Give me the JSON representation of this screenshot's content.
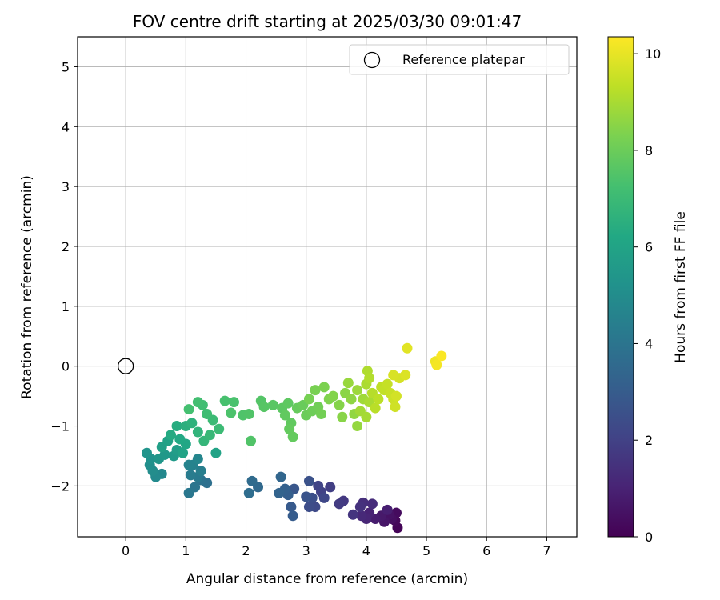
{
  "chart_data": {
    "type": "scatter",
    "title": "FOV centre drift starting at 2025/03/30 09:01:47",
    "xlabel": "Angular distance from reference (arcmin)",
    "ylabel": "Rotation from reference (arcmin)",
    "xlim": [
      -0.8,
      7.5
    ],
    "ylim": [
      -2.85,
      5.5
    ],
    "xticks": [
      0,
      1,
      2,
      3,
      4,
      5,
      6,
      7
    ],
    "yticks": [
      -2,
      -1,
      0,
      1,
      2,
      3,
      4,
      5
    ],
    "grid": true,
    "legend": {
      "placement": "top-right",
      "entries": [
        {
          "label": "Reference platepar",
          "marker": "open-circle"
        }
      ]
    },
    "reference_point": {
      "x": 0,
      "y": 0
    },
    "colorbar": {
      "label": "Hours from first FF file",
      "colormap": "viridis",
      "range": [
        0,
        10.35
      ],
      "ticks": [
        0,
        2,
        4,
        6,
        8,
        10
      ]
    },
    "points": [
      [
        4.52,
        -2.7,
        0.1
      ],
      [
        4.48,
        -2.58,
        0.2
      ],
      [
        4.5,
        -2.45,
        0.3
      ],
      [
        4.42,
        -2.55,
        0.4
      ],
      [
        4.38,
        -2.48,
        0.5
      ],
      [
        4.3,
        -2.6,
        0.6
      ],
      [
        4.25,
        -2.5,
        0.7
      ],
      [
        4.15,
        -2.55,
        0.8
      ],
      [
        4.35,
        -2.4,
        0.9
      ],
      [
        4.05,
        -2.45,
        1.0
      ],
      [
        4.0,
        -2.55,
        1.1
      ],
      [
        3.92,
        -2.5,
        1.2
      ],
      [
        4.1,
        -2.3,
        1.3
      ],
      [
        3.95,
        -2.28,
        1.4
      ],
      [
        3.9,
        -2.35,
        1.5
      ],
      [
        3.78,
        -2.48,
        1.6
      ],
      [
        3.62,
        -2.25,
        1.7
      ],
      [
        3.55,
        -2.3,
        1.8
      ],
      [
        3.4,
        -2.02,
        1.9
      ],
      [
        3.25,
        -2.1,
        2.0
      ],
      [
        3.2,
        -2.0,
        2.1
      ],
      [
        3.3,
        -2.2,
        2.2
      ],
      [
        3.15,
        -2.35,
        2.3
      ],
      [
        3.05,
        -2.35,
        2.4
      ],
      [
        3.1,
        -2.2,
        2.5
      ],
      [
        3.05,
        -1.92,
        2.6
      ],
      [
        3.0,
        -2.18,
        2.7
      ],
      [
        2.8,
        -2.05,
        2.8
      ],
      [
        2.75,
        -2.35,
        2.9
      ],
      [
        2.78,
        -2.5,
        3.0
      ],
      [
        2.7,
        -2.15,
        3.1
      ],
      [
        2.65,
        -2.05,
        3.2
      ],
      [
        2.55,
        -2.12,
        3.3
      ],
      [
        2.58,
        -1.85,
        3.4
      ],
      [
        2.2,
        -2.02,
        3.5
      ],
      [
        2.1,
        -1.92,
        3.6
      ],
      [
        2.05,
        -2.12,
        3.7
      ],
      [
        1.35,
        -1.95,
        3.8
      ],
      [
        1.25,
        -1.9,
        3.9
      ],
      [
        1.15,
        -2.02,
        4.0
      ],
      [
        1.05,
        -2.12,
        4.1
      ],
      [
        1.2,
        -1.85,
        4.2
      ],
      [
        1.08,
        -1.82,
        4.3
      ],
      [
        1.25,
        -1.75,
        4.4
      ],
      [
        1.12,
        -1.65,
        4.5
      ],
      [
        1.05,
        -1.65,
        4.6
      ],
      [
        1.2,
        -1.55,
        4.7
      ],
      [
        0.6,
        -1.8,
        4.8
      ],
      [
        0.5,
        -1.85,
        4.9
      ],
      [
        0.45,
        -1.75,
        5.0
      ],
      [
        0.4,
        -1.65,
        5.1
      ],
      [
        0.42,
        -1.55,
        5.2
      ],
      [
        0.35,
        -1.45,
        5.3
      ],
      [
        0.55,
        -1.55,
        5.4
      ],
      [
        0.65,
        -1.48,
        5.5
      ],
      [
        0.8,
        -1.5,
        5.6
      ],
      [
        0.85,
        -1.4,
        5.7
      ],
      [
        0.6,
        -1.35,
        5.8
      ],
      [
        0.7,
        -1.25,
        5.9
      ],
      [
        0.95,
        -1.45,
        6.0
      ],
      [
        1.5,
        -1.45,
        6.0
      ],
      [
        1.0,
        -1.3,
        6.1
      ],
      [
        0.9,
        -1.22,
        6.2
      ],
      [
        0.75,
        -1.15,
        6.3
      ],
      [
        0.85,
        -1.0,
        6.4
      ],
      [
        1.0,
        -1.0,
        6.5
      ],
      [
        1.1,
        -0.95,
        6.6
      ],
      [
        1.2,
        -1.1,
        6.7
      ],
      [
        1.3,
        -1.25,
        6.8
      ],
      [
        1.4,
        -1.15,
        6.9
      ],
      [
        1.55,
        -1.05,
        7.0
      ],
      [
        1.45,
        -0.9,
        7.0
      ],
      [
        1.35,
        -0.8,
        7.1
      ],
      [
        1.28,
        -0.65,
        7.15
      ],
      [
        1.2,
        -0.6,
        7.2
      ],
      [
        1.05,
        -0.72,
        7.25
      ],
      [
        1.65,
        -0.58,
        7.3
      ],
      [
        1.8,
        -0.6,
        7.35
      ],
      [
        1.75,
        -0.78,
        7.4
      ],
      [
        1.95,
        -0.82,
        7.45
      ],
      [
        2.05,
        -0.8,
        7.5
      ],
      [
        2.08,
        -1.25,
        7.5
      ],
      [
        2.25,
        -0.58,
        7.55
      ],
      [
        2.3,
        -0.68,
        7.6
      ],
      [
        2.45,
        -0.65,
        7.65
      ],
      [
        2.6,
        -0.7,
        7.7
      ],
      [
        2.7,
        -0.62,
        7.75
      ],
      [
        2.65,
        -0.82,
        7.8
      ],
      [
        2.75,
        -0.95,
        7.8
      ],
      [
        2.78,
        -1.18,
        7.85
      ],
      [
        2.72,
        -1.05,
        7.85
      ],
      [
        2.85,
        -0.7,
        7.9
      ],
      [
        2.95,
        -0.65,
        7.95
      ],
      [
        3.0,
        -0.82,
        8.0
      ],
      [
        3.1,
        -0.75,
        8.05
      ],
      [
        3.2,
        -0.68,
        8.1
      ],
      [
        3.25,
        -0.8,
        8.15
      ],
      [
        3.05,
        -0.55,
        8.2
      ],
      [
        3.15,
        -0.4,
        8.25
      ],
      [
        3.3,
        -0.35,
        8.3
      ],
      [
        3.38,
        -0.55,
        8.35
      ],
      [
        3.45,
        -0.5,
        8.4
      ],
      [
        3.55,
        -0.65,
        8.45
      ],
      [
        3.6,
        -0.85,
        8.5
      ],
      [
        3.65,
        -0.45,
        8.55
      ],
      [
        3.75,
        -0.55,
        8.6
      ],
      [
        3.8,
        -0.8,
        8.65
      ],
      [
        3.85,
        -1.0,
        8.7
      ],
      [
        3.7,
        -0.28,
        8.75
      ],
      [
        3.85,
        -0.4,
        8.8
      ],
      [
        3.95,
        -0.55,
        8.85
      ],
      [
        3.9,
        -0.75,
        8.9
      ],
      [
        4.0,
        -0.85,
        8.95
      ],
      [
        4.05,
        -0.6,
        9.0
      ],
      [
        4.0,
        -0.3,
        9.05
      ],
      [
        4.02,
        -0.08,
        9.1
      ],
      [
        4.05,
        -0.2,
        9.15
      ],
      [
        4.1,
        -0.45,
        9.2
      ],
      [
        4.15,
        -0.7,
        9.25
      ],
      [
        4.2,
        -0.55,
        9.3
      ],
      [
        4.25,
        -0.35,
        9.35
      ],
      [
        4.3,
        -0.4,
        9.4
      ],
      [
        4.35,
        -0.3,
        9.45
      ],
      [
        4.4,
        -0.45,
        9.5
      ],
      [
        4.45,
        -0.55,
        9.55
      ],
      [
        4.48,
        -0.68,
        9.6
      ],
      [
        4.5,
        -0.5,
        9.65
      ],
      [
        4.55,
        -0.2,
        9.7
      ],
      [
        4.45,
        -0.15,
        9.75
      ],
      [
        4.65,
        -0.15,
        9.8
      ],
      [
        4.68,
        0.3,
        9.9
      ],
      [
        5.15,
        0.08,
        10.1
      ],
      [
        5.17,
        0.02,
        10.2
      ],
      [
        5.25,
        0.17,
        10.3
      ]
    ]
  }
}
